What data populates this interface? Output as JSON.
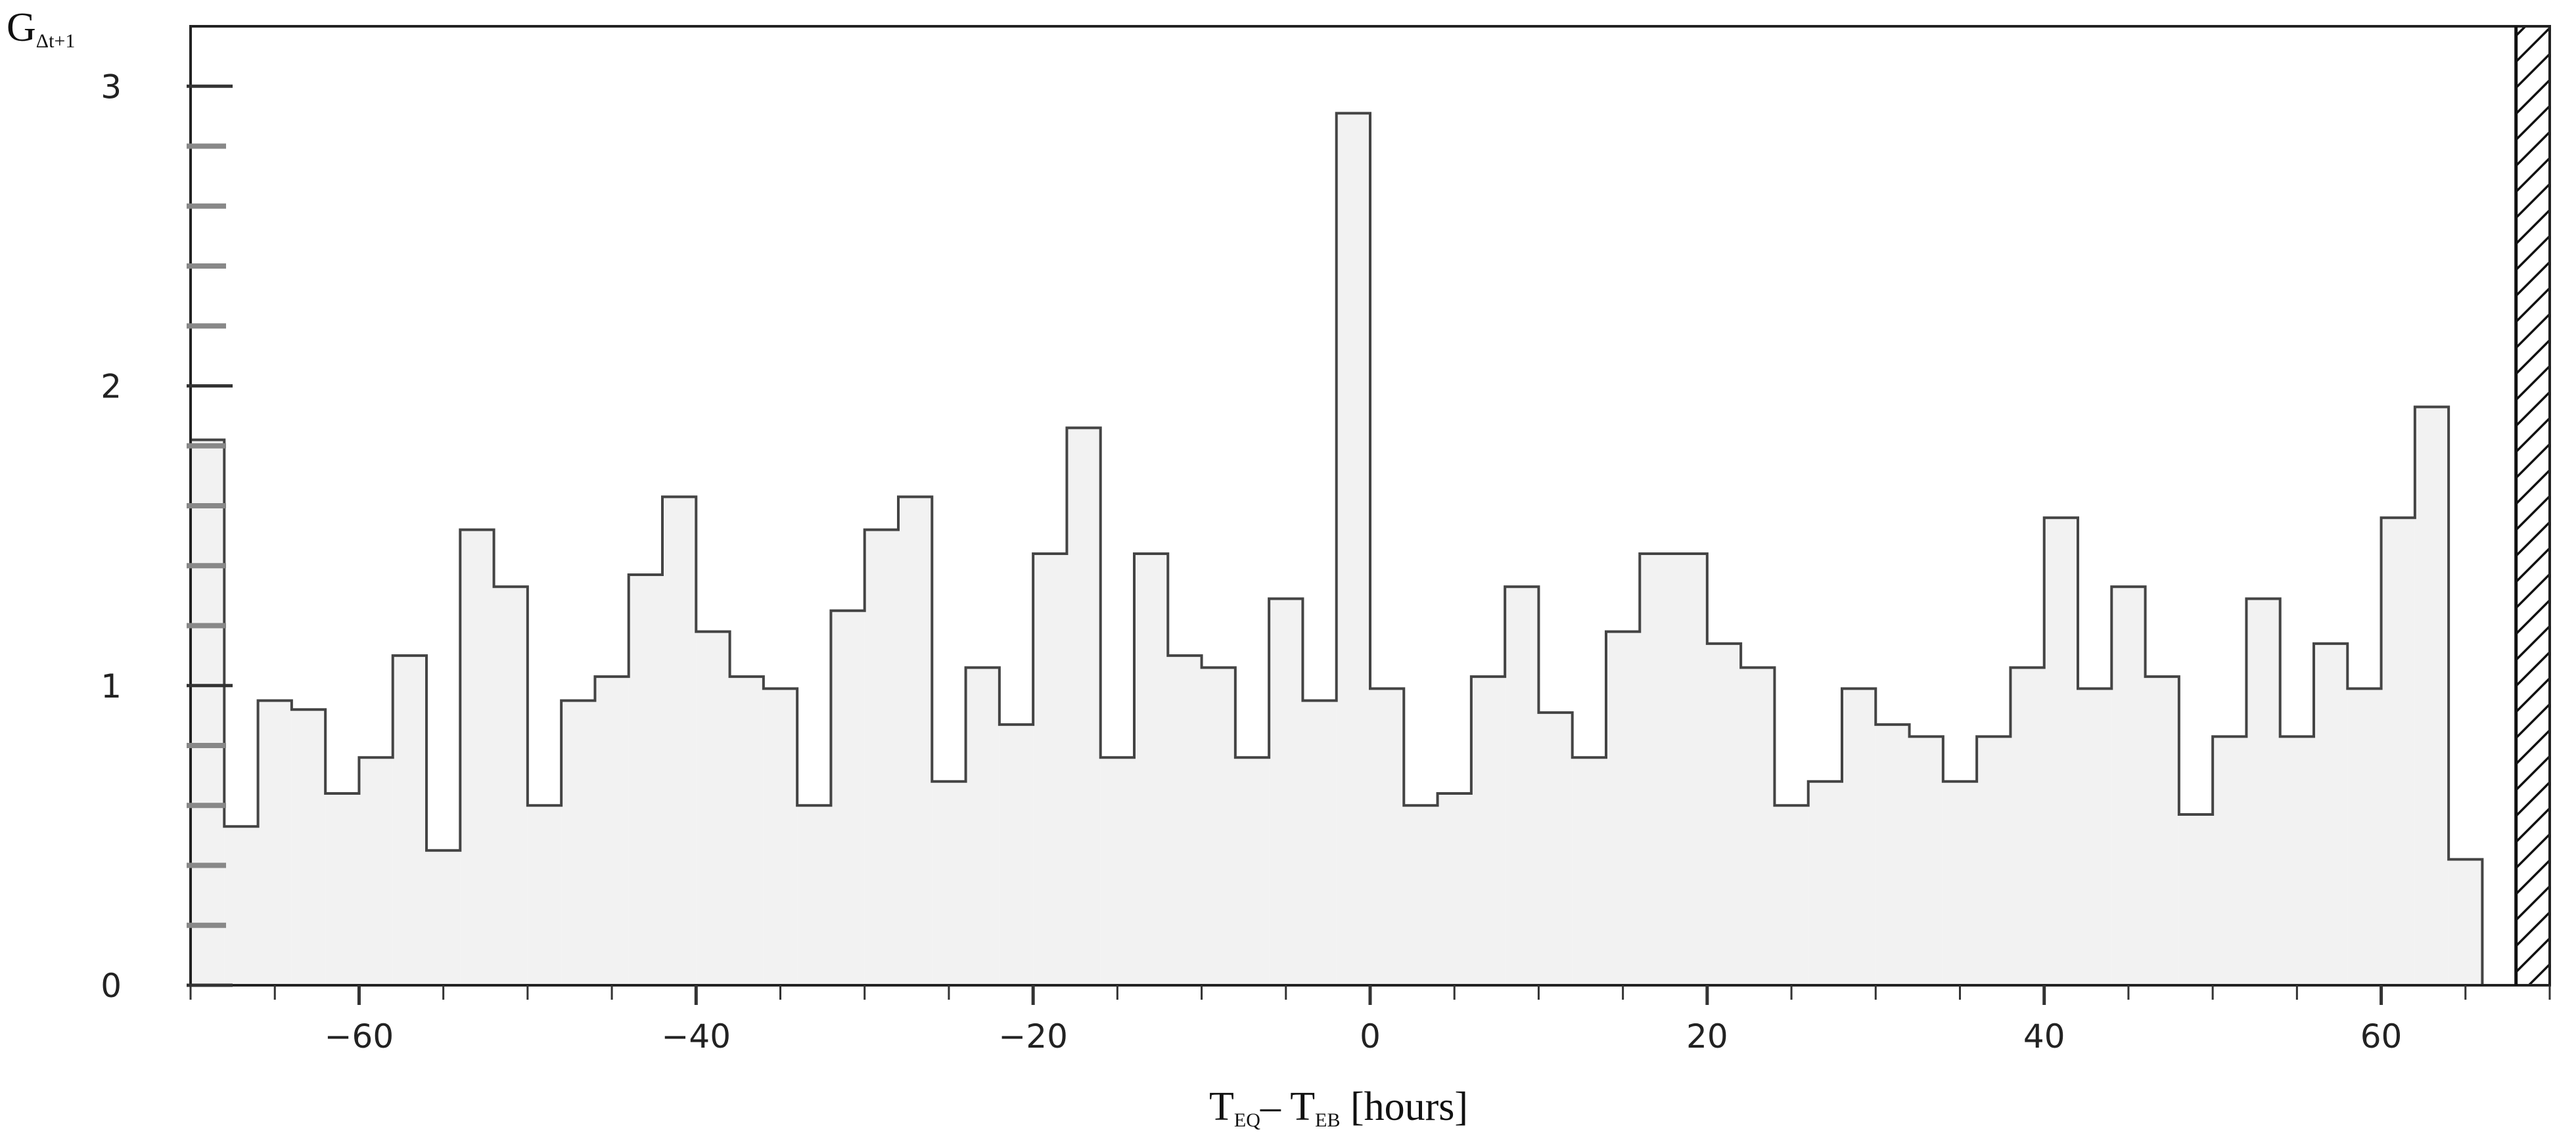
{
  "chart_data": {
    "type": "bar",
    "style": "step-histogram",
    "bin_width": 2,
    "x_start": -70,
    "xlim": [
      -70,
      70
    ],
    "ylim": [
      0,
      3.2
    ],
    "x_ticks": [
      -60,
      -40,
      -20,
      0,
      20,
      40,
      60
    ],
    "x_tick_labels": [
      "−60",
      "−40",
      "−20",
      "0",
      "20",
      "40",
      "60"
    ],
    "y_ticks": [
      0,
      1,
      2,
      3
    ],
    "y_tick_labels": [
      "0",
      "1",
      "2",
      "3"
    ],
    "ylabel": {
      "main": "G",
      "sub": "Δt+1"
    },
    "xlabel": {
      "t1": "T",
      "s1": "EQ",
      "mid": "– T",
      "s2": "EB",
      "tail": " [hours]"
    },
    "values": [
      1.82,
      0.53,
      0.95,
      0.92,
      0.64,
      0.76,
      1.1,
      0.45,
      1.52,
      1.33,
      0.6,
      0.95,
      1.03,
      1.37,
      1.63,
      1.18,
      1.03,
      0.99,
      0.6,
      1.25,
      1.52,
      1.63,
      0.68,
      1.06,
      0.87,
      1.44,
      1.86,
      0.76,
      1.44,
      1.1,
      1.06,
      0.76,
      1.29,
      0.95,
      2.91,
      0.99,
      0.6,
      0.64,
      1.03,
      1.33,
      0.91,
      0.76,
      1.18,
      1.44,
      1.44,
      1.14,
      1.06,
      0.6,
      0.68,
      0.99,
      0.87,
      0.83,
      0.68,
      0.83,
      1.06,
      1.56,
      0.99,
      1.33,
      1.03,
      0.57,
      0.83,
      1.29,
      0.83,
      1.14,
      0.99,
      1.56,
      1.93,
      0.42
    ],
    "hatched_region": [
      68,
      70
    ],
    "colors": {
      "fill": "#f2f2f2",
      "line": "#444444",
      "axis": "#333333"
    }
  }
}
